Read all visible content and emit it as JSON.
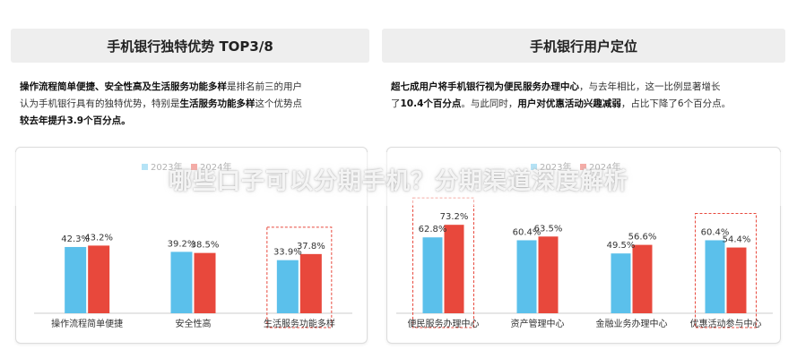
{
  "left": {
    "header": "手机银行独特优势 TOP3/8",
    "text": {
      "l1_b": "操作流程简单便捷、安全性高及生活服务功能多样",
      "l1_t": "是排名前三的用户",
      "l2_t": "认为手机银行具有的独特优势，特别是",
      "l2_b": "生活服务功能多样",
      "l2_t2": "这个优势点",
      "l3_b": "较去年提升3.9个百分点。"
    }
  },
  "right": {
    "header": "手机银行用户定位",
    "text": {
      "l1_b": "超七成用户将手机银行视为便民服务办理中心",
      "l1_t": "，与去年相比，这一比例显著增长",
      "l2_t": "了",
      "l2_b": "10.4个百分点",
      "l2_t2": "。与此同时，",
      "l2_b2": "用户对优惠活动兴趣减弱",
      "l2_t3": "，占比下降了6个百分点。"
    }
  },
  "banner": "哪些口子可以分期手机？分期渠道深度解析",
  "colors": {
    "y2023": "#5bc0eb",
    "y2024": "#e8483c",
    "highlight": "#e8483c"
  },
  "chart_data": [
    {
      "type": "bar",
      "categories": [
        "操作流程简单便捷",
        "安全性高",
        "生活服务功能多样"
      ],
      "series": [
        {
          "name": "2023年",
          "values": [
            42.3,
            39.2,
            33.9
          ]
        },
        {
          "name": "2024年",
          "values": [
            43.2,
            38.5,
            37.8
          ]
        }
      ],
      "labels_2023": [
        "42.3%",
        "39.2%",
        "33.9%"
      ],
      "labels_2024": [
        "43.2%",
        "38.5%",
        "37.8%"
      ],
      "highlight": "生活服务功能多样",
      "legend": "top-center"
    },
    {
      "type": "bar",
      "categories": [
        "便民服务办理中心",
        "资产管理中心",
        "金融业务办理中心",
        "优惠活动参与中心"
      ],
      "series": [
        {
          "name": "2023年",
          "values": [
            62.8,
            60.4,
            49.5,
            60.4
          ]
        },
        {
          "name": "2024年",
          "values": [
            73.2,
            63.5,
            56.6,
            54.4
          ]
        }
      ],
      "labels_2023": [
        "62.8%",
        "60.4%",
        "49.5%",
        "60.4%"
      ],
      "labels_2024": [
        "73.2%",
        "63.5%",
        "56.6%",
        "54.4%"
      ],
      "highlight": [
        "便民服务办理中心",
        "优惠活动参与中心"
      ],
      "legend": "top-center"
    }
  ]
}
